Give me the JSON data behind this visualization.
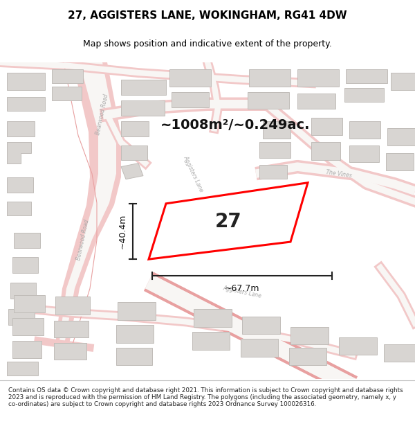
{
  "title": "27, AGGISTERS LANE, WOKINGHAM, RG41 4DW",
  "subtitle": "Map shows position and indicative extent of the property.",
  "area_text": "~1008m²/~0.249ac.",
  "width_label": "~67.7m",
  "height_label": "~40.4m",
  "house_number": "27",
  "footer_text": "Contains OS data © Crown copyright and database right 2021. This information is subject to Crown copyright and database rights 2023 and is reproduced with the permission of HM Land Registry. The polygons (including the associated geometry, namely x, y co-ordinates) are subject to Crown copyright and database rights 2023 Ordnance Survey 100026316.",
  "bg_color": "#f5f4f2",
  "road_fill": "#f2c8c8",
  "road_edge": "#e8a0a0",
  "road_white": "#f8f6f4",
  "bld_fill": "#d8d5d2",
  "bld_edge": "#c0bcb8",
  "plot_color": "#ff0000",
  "arrow_color": "#222222",
  "title_fontsize": 11,
  "subtitle_fontsize": 9,
  "area_fontsize": 14,
  "dim_fontsize": 9,
  "house_fontsize": 20,
  "footer_fontsize": 6.3
}
